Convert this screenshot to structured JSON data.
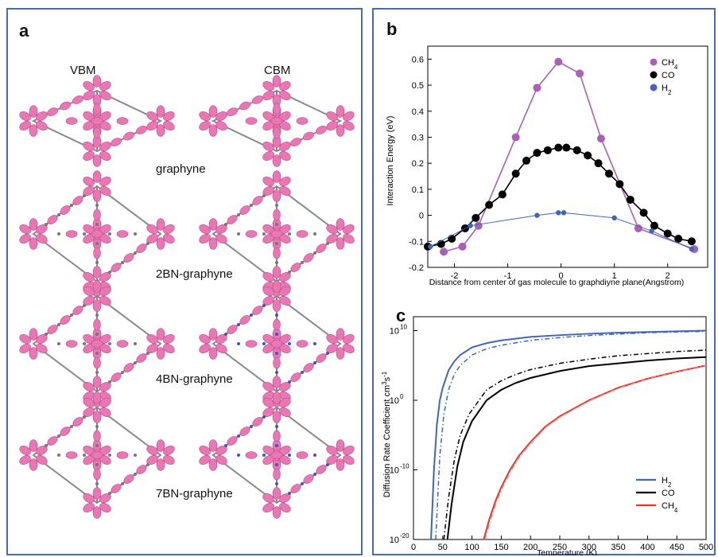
{
  "panel_a": {
    "label": "a",
    "columns": [
      "VBM",
      "CBM"
    ],
    "structures": [
      "graphyne",
      "2BN-graphyne",
      "4BN-graphyne",
      "7BN-graphyne"
    ]
  },
  "colors": {
    "ch4": "#a861b5",
    "co": "#000000",
    "h2": "#4166b5",
    "ch4_c": "#e8352b",
    "lobe": "#e877b4",
    "frame": "#4a6bb0"
  },
  "chart_data": [
    {
      "id": "b",
      "type": "line",
      "panel_label": "b",
      "xlabel": "Distance from center of gas molecule to graphdiyne plane(Angstrom)",
      "ylabel": "Interaction Energy (eV)",
      "xlim": [
        -2.5,
        2.75
      ],
      "ylim": [
        -0.2,
        0.65
      ],
      "xticks": [
        -2,
        -1,
        0,
        1,
        2
      ],
      "yticks": [
        -0.2,
        -0.1,
        0,
        0.1,
        0.2,
        0.3,
        0.4,
        0.5,
        0.6
      ],
      "ytick_labels": [
        "-0.2",
        "-0.1",
        "0",
        "0.1",
        "0.2",
        "0.3",
        "0.4",
        "0.5",
        "0.6"
      ],
      "legend_position": "top-right",
      "series": [
        {
          "name": "CH4",
          "legend_main": "CH",
          "legend_sub": "4",
          "color": "#a861b5",
          "x": [
            -2.2,
            -1.85,
            -1.55,
            -0.85,
            -0.45,
            -0.05,
            0.35,
            0.75,
            1.45,
            2.5
          ],
          "y": [
            -0.14,
            -0.12,
            -0.04,
            0.3,
            0.49,
            0.59,
            0.545,
            0.295,
            -0.05,
            -0.13
          ]
        },
        {
          "name": "CO",
          "legend_main": "CO",
          "legend_sub": "",
          "color": "#000000",
          "x": [
            -2.5,
            -2.25,
            -2.05,
            -1.8,
            -1.6,
            -1.35,
            -1.1,
            -0.85,
            -0.65,
            -0.45,
            -0.25,
            -0.05,
            0.1,
            0.3,
            0.5,
            0.7,
            0.9,
            1.1,
            1.3,
            1.55,
            1.75,
            2.0,
            2.2,
            2.45
          ],
          "y": [
            -0.12,
            -0.11,
            -0.09,
            -0.05,
            -0.01,
            0.04,
            0.08,
            0.16,
            0.21,
            0.24,
            0.25,
            0.26,
            0.26,
            0.25,
            0.23,
            0.2,
            0.16,
            0.12,
            0.06,
            0.01,
            -0.04,
            -0.07,
            -0.09,
            -0.1
          ]
        },
        {
          "name": "H2",
          "legend_main": "H",
          "legend_sub": "2",
          "color": "#4166b5",
          "x": [
            -2.45,
            -1.7,
            -0.45,
            -0.05,
            0.05,
            1.0,
            1.7,
            2.45
          ],
          "y": [
            -0.12,
            -0.04,
            0.0,
            0.01,
            0.01,
            -0.01,
            -0.06,
            -0.13
          ]
        }
      ]
    },
    {
      "id": "c",
      "type": "line",
      "panel_label": "c",
      "xlabel": "Temperature (K)",
      "ylabel_main": "Diffusion Rate Coefficient cm",
      "ylabel_sup1": "3",
      "ylabel_mid": "s",
      "ylabel_sup2": "-1",
      "y_scale": "log",
      "xlim": [
        0,
        500
      ],
      "ylim_exp": [
        -20,
        12
      ],
      "xticks": [
        0,
        50,
        100,
        150,
        200,
        250,
        300,
        350,
        400,
        450,
        500
      ],
      "yticks": [
        {
          "base": "10",
          "exp": "-20",
          "value_exp": -20
        },
        {
          "base": "10",
          "exp": "-10",
          "value_exp": -10
        },
        {
          "base": "10",
          "exp": "0",
          "value_exp": 0
        },
        {
          "base": "10",
          "exp": "10",
          "value_exp": 10
        }
      ],
      "legend_position": "bottom-right",
      "series": [
        {
          "name": "H2",
          "legend_main": "H",
          "legend_sub": "2",
          "color": "#4166b5",
          "style": "solid",
          "x": [
            30,
            35,
            40,
            45,
            50,
            60,
            70,
            80,
            100,
            125,
            150,
            200,
            250,
            300,
            350,
            400,
            450,
            500
          ],
          "y_exp": [
            -20,
            -10,
            -3.5,
            0,
            1.8,
            4.3,
            5.6,
            6.5,
            7.6,
            8.2,
            8.6,
            9.1,
            9.35,
            9.55,
            9.7,
            9.8,
            9.9,
            10.0
          ]
        },
        {
          "name": "H2 (dash-dot)",
          "legend_main": "",
          "legend_sub": "",
          "color": "#4166b5",
          "style": "dashdot",
          "x": [
            38,
            45,
            52,
            60,
            70,
            80,
            100,
            125,
            150,
            200,
            250,
            300,
            350,
            400,
            450,
            500
          ],
          "y_exp": [
            -20,
            -8,
            -2,
            1.5,
            3.8,
            5.0,
            6.5,
            7.4,
            7.9,
            8.6,
            9.0,
            9.3,
            9.5,
            9.7,
            9.8,
            9.9
          ]
        },
        {
          "name": "CO",
          "legend_main": "CO",
          "legend_sub": "",
          "color": "#000000",
          "style": "solid",
          "x": [
            58,
            65,
            75,
            85,
            100,
            125,
            150,
            175,
            200,
            250,
            300,
            350,
            400,
            450,
            500
          ],
          "y_exp": [
            -20,
            -15,
            -9.5,
            -6,
            -3,
            0,
            1.5,
            2.5,
            3.2,
            4.2,
            4.9,
            5.3,
            5.7,
            6.0,
            6.2
          ]
        },
        {
          "name": "CO (dash-dot)",
          "legend_main": "",
          "legend_sub": "",
          "color": "#000000",
          "style": "dashdot",
          "x": [
            52,
            60,
            70,
            80,
            95,
            125,
            150,
            175,
            200,
            250,
            300,
            350,
            400,
            450,
            500
          ],
          "y_exp": [
            -20,
            -14,
            -8.5,
            -5,
            -2,
            1.5,
            2.8,
            3.7,
            4.4,
            5.3,
            5.9,
            6.4,
            6.7,
            7.0,
            7.2
          ]
        },
        {
          "name": "CH4",
          "legend_main": "CH",
          "legend_sub": "4",
          "color": "#e8352b",
          "style": "solid",
          "x": [
            120,
            130,
            140,
            150,
            165,
            180,
            200,
            225,
            250,
            300,
            350,
            400,
            450,
            500
          ],
          "y_exp": [
            -20,
            -17,
            -14.5,
            -12.5,
            -10,
            -8,
            -6,
            -3.8,
            -2.3,
            0,
            1.8,
            3.1,
            4.1,
            5.0
          ]
        },
        {
          "name": "CH4 (dash-dot)",
          "legend_main": "",
          "legend_sub": "",
          "color": "#f07a74",
          "style": "dashdot",
          "x": [
            122,
            132,
            142,
            152,
            167,
            182,
            202,
            227,
            252,
            302,
            352,
            402,
            452,
            500
          ],
          "y_exp": [
            -20,
            -17,
            -14.5,
            -12.5,
            -10,
            -8,
            -6,
            -3.8,
            -2.3,
            0,
            1.8,
            3.1,
            4.1,
            5.0
          ]
        }
      ]
    }
  ]
}
